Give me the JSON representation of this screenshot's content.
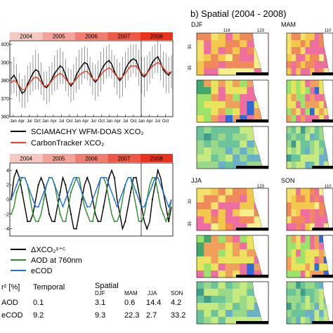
{
  "panel_b": {
    "title": "b) Spatial (2004 - 2008)",
    "seasons": [
      "DJF",
      "MAM",
      "JJA",
      "SON"
    ],
    "lon_ticks": [
      "118",
      "123",
      "110"
    ],
    "lat_ticks": [
      "30",
      "35"
    ]
  },
  "table": {
    "header_label": "r² [%]",
    "temporal_label": "Temporal",
    "spatial_label": "Spatial",
    "season_headers": [
      "DJF",
      "MAM",
      "JJA",
      "SON"
    ],
    "rows": [
      {
        "label": "AOD",
        "temporal": "0.1",
        "values": [
          "3.1",
          "0.6",
          "14.4",
          "4.2"
        ]
      },
      {
        "label": "eCOD",
        "temporal": "9.2",
        "values": [
          "9.3",
          "22.3",
          "2.7",
          "33.2"
        ]
      }
    ]
  },
  "colors": {
    "year_bar_light": "#f6c8c2",
    "year_bar_dark": "#e8341f",
    "sciamachy": "#000000",
    "carbontracker": "#e8402a",
    "aod": "#2e8b2e",
    "ecod": "#1f6fd8"
  },
  "chart_data": [
    {
      "type": "line",
      "year_labels": [
        "2004",
        "2005",
        "2006",
        "2007",
        "2008"
      ],
      "x_tick_labels": [
        "Jan",
        "Apr",
        "Jul",
        "Oct",
        "Jan",
        "Apr",
        "Jul",
        "Oct",
        "Jan",
        "Apr",
        "Jul",
        "Oct",
        "Jan",
        "Apr",
        "Jul",
        "Oct",
        "Jan",
        "Apr",
        "Jul",
        "Oct"
      ],
      "y_ticks": [
        360,
        370,
        380,
        390,
        400
      ],
      "ylim": [
        360,
        402
      ],
      "series": [
        {
          "name": "SCIAMACHY WFM-DOAS XCO₂",
          "color": "#000000",
          "values": [
            381,
            383,
            380,
            376,
            373,
            374,
            378,
            381,
            384,
            386,
            385,
            381,
            377,
            376,
            378,
            381,
            384,
            386,
            388,
            387,
            383,
            379,
            377,
            379,
            383,
            386,
            388,
            390,
            389,
            385,
            381,
            379,
            381,
            385,
            388,
            390,
            391,
            389,
            385,
            382,
            380,
            382,
            386,
            389,
            391,
            392,
            391,
            387,
            383,
            382,
            384,
            387,
            390,
            392,
            393,
            390,
            386,
            384,
            383,
            385
          ],
          "errors": [
            9,
            10,
            9,
            8,
            8,
            9,
            10,
            9,
            10,
            11,
            10,
            9,
            8,
            9,
            10,
            9,
            10,
            11,
            10,
            9,
            9,
            8,
            9,
            10,
            10,
            11,
            10,
            9,
            9,
            8,
            9,
            10,
            10,
            11,
            10,
            9,
            9,
            8,
            9,
            10,
            10,
            11,
            10,
            9,
            9,
            8,
            9,
            10,
            10,
            11,
            10,
            9,
            9,
            8,
            9,
            10,
            10,
            11,
            10,
            9
          ]
        },
        {
          "name": "CarbonTracker XCO₂",
          "color": "#e8402a",
          "values": [
            379,
            380,
            379,
            377,
            375,
            375,
            377,
            379,
            381,
            382,
            381,
            379,
            377,
            377,
            378,
            380,
            382,
            383,
            384,
            383,
            381,
            379,
            378,
            379,
            381,
            383,
            384,
            385,
            385,
            383,
            381,
            380,
            381,
            383,
            385,
            386,
            387,
            386,
            384,
            382,
            381,
            382,
            384,
            386,
            388,
            388,
            388,
            386,
            384,
            383,
            384,
            386,
            388,
            389,
            390,
            389,
            387,
            385,
            384,
            385
          ]
        }
      ]
    },
    {
      "type": "line",
      "year_labels": [
        "2004",
        "2005",
        "2006",
        "2007",
        "2008"
      ],
      "y_ticks": [
        -4,
        -2,
        0,
        2,
        4
      ],
      "ylim": [
        -5,
        5
      ],
      "series": [
        {
          "name": "ΔXCO₂ˢ⁺ᶜ",
          "color": "#000000",
          "values": [
            0,
            3,
            4,
            3,
            1,
            -1,
            -3,
            -3,
            -2,
            0,
            2,
            3,
            2,
            0,
            -2,
            -3,
            -3,
            -1,
            1,
            3,
            2,
            0,
            -2,
            -4,
            -4,
            -2,
            0,
            2,
            3,
            2,
            0,
            -2,
            -3,
            -3,
            -1,
            1,
            3,
            4,
            3,
            0,
            -2,
            -4,
            -3,
            -1,
            1,
            3,
            3,
            1,
            -1,
            -3,
            -4,
            -3,
            0,
            2,
            4,
            3,
            1,
            -1,
            -3,
            -1
          ]
        },
        {
          "name": "AOD at 760nm",
          "color": "#2e8b2e",
          "values": [
            -2,
            -1,
            1,
            2,
            3,
            3,
            2,
            0,
            -2,
            -3,
            -3,
            -2,
            0,
            2,
            3,
            3,
            2,
            0,
            -2,
            -3,
            -3,
            -1,
            1,
            2,
            3,
            3,
            1,
            -1,
            -2,
            -3,
            -3,
            -1,
            1,
            3,
            3,
            2,
            0,
            -2,
            -3,
            -3,
            -2,
            0,
            2,
            3,
            3,
            1,
            -1,
            -3,
            -3,
            -2,
            0,
            2,
            3,
            3,
            1,
            -1,
            -2,
            -3,
            -2,
            0
          ]
        },
        {
          "name": "eCOD",
          "color": "#1f6fd8",
          "values": [
            0,
            1,
            2,
            3,
            3,
            3,
            2,
            1,
            0,
            -1,
            -1,
            0,
            1,
            2,
            3,
            3,
            2,
            1,
            0,
            -1,
            0,
            1,
            2,
            3,
            3,
            2,
            1,
            0,
            -1,
            -1,
            0,
            1,
            2,
            3,
            3,
            3,
            2,
            1,
            0,
            -1,
            0,
            1,
            2,
            3,
            3,
            2,
            1,
            0,
            -1,
            -1,
            0,
            1,
            2,
            3,
            3,
            2,
            1,
            0,
            -1,
            0
          ]
        }
      ]
    }
  ]
}
